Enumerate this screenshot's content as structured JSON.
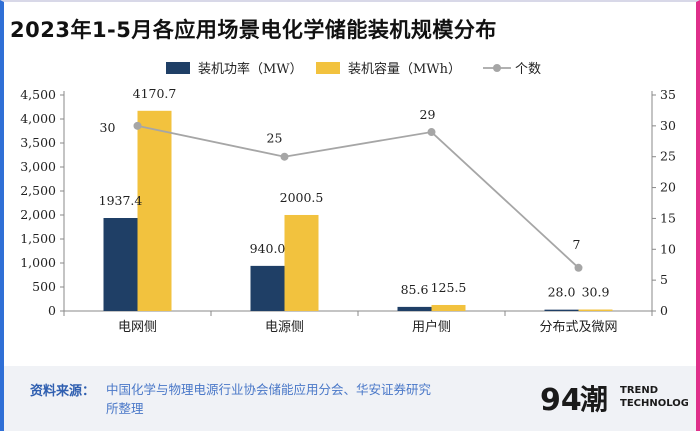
{
  "title": "2023年1-5月各应用场景电化学储能装机规模分布",
  "chart_data": {
    "type": "bar",
    "categories": [
      "电网侧",
      "电源侧",
      "用户侧",
      "分布式及微网"
    ],
    "series": [
      {
        "name": "装机功率（MW）",
        "type": "bar",
        "axis": "left",
        "color": "#1f3f66",
        "values": [
          1937.4,
          940.0,
          85.6,
          28.0
        ],
        "labels": [
          "1937.4",
          "940.0",
          "85.6",
          "28.0"
        ]
      },
      {
        "name": "装机容量（MWh）",
        "type": "bar",
        "axis": "left",
        "color": "#f2c23e",
        "values": [
          4170.7,
          2000.5,
          125.5,
          30.9
        ],
        "labels": [
          "4170.7",
          "2000.5",
          "125.5",
          "30.9"
        ]
      },
      {
        "name": "个数",
        "type": "line",
        "axis": "right",
        "color": "#a6a6a6",
        "values": [
          30,
          25,
          29,
          7
        ],
        "labels": [
          "30",
          "25",
          "29",
          "7"
        ]
      }
    ],
    "left_axis": {
      "min": 0,
      "max": 4500,
      "ticks": [
        "0",
        "500",
        "1,000",
        "1,500",
        "2,000",
        "2,500",
        "3,000",
        "3,500",
        "4,000",
        "4,500"
      ],
      "tick_values": [
        0,
        500,
        1000,
        1500,
        2000,
        2500,
        3000,
        3500,
        4000,
        4500
      ]
    },
    "right_axis": {
      "min": 0,
      "max": 35,
      "ticks": [
        "0",
        "5",
        "10",
        "15",
        "20",
        "25",
        "30",
        "35"
      ],
      "tick_values": [
        0,
        5,
        10,
        15,
        20,
        25,
        30,
        35
      ]
    },
    "legend_position": "top-center"
  },
  "footer": {
    "source_label": "资料来源：",
    "source_text": "中国化学与物理电源行业协会储能应用分会、华安证券研究所整理"
  },
  "logo": {
    "mark": "94",
    "glyph": "潮",
    "line1": "TREND",
    "line2": "TECHNOLOGY"
  }
}
